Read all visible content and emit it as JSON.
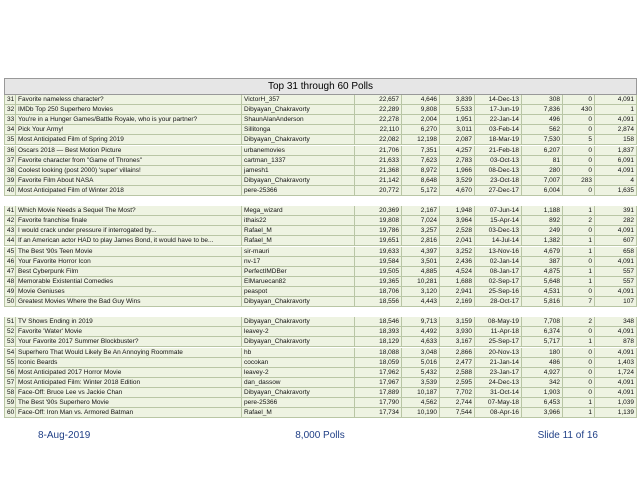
{
  "table": {
    "title": "Top 31 through 60 Polls",
    "rows": [
      [
        "31",
        "Favorite nameless character?",
        "VictorH_357",
        "22,657",
        "4,646",
        "3,839",
        "14-Dec-13",
        "308",
        "0",
        "4,091"
      ],
      [
        "32",
        "IMDb Top 250 Superhero Movies",
        "Dibyayan_Chakravorty",
        "22,289",
        "9,808",
        "5,533",
        "17-Jun-19",
        "7,836",
        "430",
        "1"
      ],
      [
        "33",
        "You're in a Hunger Games/Battle Royale, who is your partner?",
        "ShaunAlanAnderson",
        "22,278",
        "2,004",
        "1,951",
        "22-Jan-14",
        "496",
        "0",
        "4,091"
      ],
      [
        "34",
        "Pick Your Army!",
        "Sillitonga",
        "22,110",
        "6,270",
        "3,011",
        "03-Feb-14",
        "562",
        "0",
        "2,874"
      ],
      [
        "35",
        "Most Anticipated Film of Spring 2019",
        "Dibyayan_Chakravorty",
        "22,082",
        "12,198",
        "2,087",
        "18-Mar-19",
        "7,530",
        "5",
        "158"
      ],
      [
        "36",
        "Oscars 2018 — Best Motion Picture",
        "urbanemovies",
        "21,706",
        "7,351",
        "4,257",
        "21-Feb-18",
        "6,207",
        "0",
        "1,837"
      ],
      [
        "37",
        "Favorite character from \"Game of Thrones\"",
        "cartman_1337",
        "21,633",
        "7,623",
        "2,783",
        "03-Oct-13",
        "81",
        "0",
        "6,091"
      ],
      [
        "38",
        "Coolest looking (post 2000) 'super' villains!",
        "jamesh1",
        "21,368",
        "8,972",
        "1,966",
        "08-Dec-13",
        "280",
        "0",
        "4,091"
      ],
      [
        "39",
        "Favorite Film About NASA",
        "Dibyayan_Chakravorty",
        "21,142",
        "8,648",
        "3,529",
        "23-Oct-18",
        "7,007",
        "283",
        "4"
      ],
      [
        "40",
        "Most Anticipated Film of Winter 2018",
        "pere-25366",
        "20,772",
        "5,172",
        "4,670",
        "27-Dec-17",
        "6,004",
        "0",
        "1,635"
      ],
      [
        "41",
        "Which Movie Needs a Sequel The Most?",
        "Mega_wizard",
        "20,369",
        "2,167",
        "1,948",
        "07-Jun-14",
        "1,188",
        "1",
        "391"
      ],
      [
        "42",
        "Favorite franchise finale",
        "ithais22",
        "19,808",
        "7,024",
        "3,964",
        "15-Apr-14",
        "892",
        "2",
        "282"
      ],
      [
        "43",
        "I would crack under pressure if interrogated by...",
        "Rafael_M",
        "19,786",
        "3,257",
        "2,528",
        "03-Dec-13",
        "249",
        "0",
        "4,091"
      ],
      [
        "44",
        "If an American actor HAD to play James Bond, it would have to be...",
        "Rafael_M",
        "19,651",
        "2,816",
        "2,041",
        "14-Jul-14",
        "1,382",
        "1",
        "607"
      ],
      [
        "45",
        "The Best '90s Teen Movie",
        "sir-mauri",
        "19,633",
        "4,397",
        "3,252",
        "13-Nov-16",
        "4,679",
        "1",
        "658"
      ],
      [
        "46",
        "Your Favorite Horror Icon",
        "nv-17",
        "19,584",
        "3,501",
        "2,436",
        "02-Jan-14",
        "387",
        "0",
        "4,091"
      ],
      [
        "47",
        "Best Cyberpunk Film",
        "PerfectIMDBer",
        "19,505",
        "4,885",
        "4,524",
        "08-Jan-17",
        "4,875",
        "1",
        "557"
      ],
      [
        "48",
        "Memorable Existential Comedies",
        "ElMaruecan82",
        "19,365",
        "10,281",
        "1,688",
        "02-Sep-17",
        "5,648",
        "1",
        "557"
      ],
      [
        "49",
        "Movie Geniuses",
        "peaspot",
        "18,706",
        "3,120",
        "2,941",
        "25-Sep-16",
        "4,531",
        "0",
        "4,091"
      ],
      [
        "50",
        "Greatest Movies Where the Bad Guy Wins",
        "Dibyayan_Chakravorty",
        "18,556",
        "4,443",
        "2,169",
        "28-Oct-17",
        "5,816",
        "7",
        "107"
      ],
      [
        "51",
        "TV Shows Ending in 2019",
        "Dibyayan_Chakravorty",
        "18,546",
        "9,713",
        "3,159",
        "08-May-19",
        "7,708",
        "2",
        "348"
      ],
      [
        "52",
        "Favorite 'Water' Movie",
        "leavey-2",
        "18,393",
        "4,492",
        "3,930",
        "11-Apr-18",
        "6,374",
        "0",
        "4,091"
      ],
      [
        "53",
        "Your Favorite 2017 Summer Blockbuster?",
        "Dibyayan_Chakravorty",
        "18,129",
        "4,633",
        "3,167",
        "25-Sep-17",
        "5,717",
        "1",
        "878"
      ],
      [
        "54",
        "Superhero That Would Likely Be An Annoying Roommate",
        "hb",
        "18,088",
        "3,048",
        "2,866",
        "20-Nov-13",
        "180",
        "0",
        "4,091"
      ],
      [
        "55",
        "Iconic Beards",
        "cocokan",
        "18,059",
        "5,016",
        "2,477",
        "21-Jan-14",
        "486",
        "0",
        "1,403"
      ],
      [
        "56",
        "Most Anticipated 2017 Horror Movie",
        "leavey-2",
        "17,962",
        "5,432",
        "2,588",
        "23-Jan-17",
        "4,927",
        "0",
        "1,724"
      ],
      [
        "57",
        "Most Anticipated Film: Winter 2018 Edition",
        "dan_dassow",
        "17,967",
        "3,539",
        "2,595",
        "24-Dec-13",
        "342",
        "0",
        "4,091"
      ],
      [
        "58",
        "Face-Off: Bruce Lee vs Jackie Chan",
        "Dibyayan_Chakravorty",
        "17,889",
        "10,187",
        "7,702",
        "31-Oct-14",
        "1,903",
        "0",
        "4,091"
      ],
      [
        "59",
        "The Best '90s Superhero Movie",
        "pere-25366",
        "17,790",
        "4,562",
        "2,744",
        "07-May-18",
        "6,453",
        "1",
        "1,039"
      ],
      [
        "60",
        "Face-Off: Iron Man vs. Armored Batman",
        "Rafael_M",
        "17,734",
        "10,190",
        "7,544",
        "08-Apr-16",
        "3,966",
        "1",
        "1,139"
      ]
    ]
  },
  "footer": {
    "date": "8-Aug-2019",
    "polls": "8,000 Polls",
    "slide": "Slide 11 of 16"
  }
}
